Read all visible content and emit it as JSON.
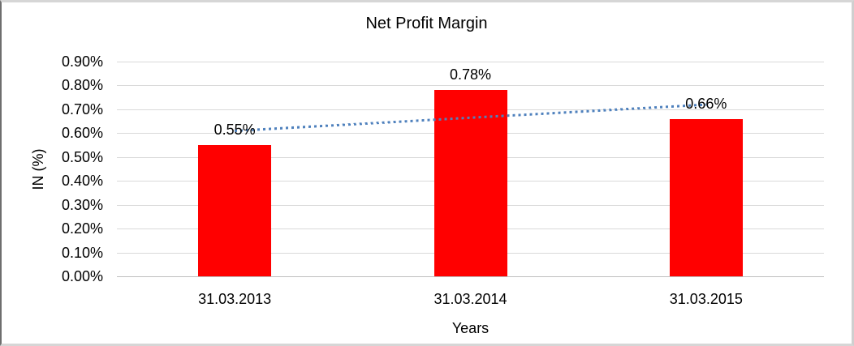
{
  "chart_data": {
    "type": "bar",
    "title": "Net Profit Margin",
    "categories": [
      "31.03.2013",
      "31.03.2014",
      "31.03.2015"
    ],
    "values": [
      0.55,
      0.78,
      0.66
    ],
    "data_labels": [
      "0.55%",
      "0.78%",
      "0.66%"
    ],
    "xlabel": "Years",
    "ylabel": "IN (%)",
    "ylim": [
      0,
      0.9
    ],
    "y_tick_step": 0.1,
    "y_tick_labels": [
      "0.90%",
      "0.80%",
      "0.70%",
      "0.60%",
      "0.50%",
      "0.40%",
      "0.30%",
      "0.20%",
      "0.10%",
      "0.00%"
    ],
    "gridlines": true,
    "legend": "none",
    "colors": {
      "bar": "#ff0000",
      "trendline": "#4f81bd",
      "gridline": "#d9d9d9",
      "axis_line": "#bfbfbf",
      "text": "#000000",
      "frame_border": "#d6d6d6",
      "frame_border_left": "#6e6e6e"
    },
    "trendline": {
      "type": "linear",
      "style": "dotted",
      "color": "#4f81bd",
      "fitted_points": [
        0.6083,
        0.6633,
        0.7183
      ]
    }
  }
}
